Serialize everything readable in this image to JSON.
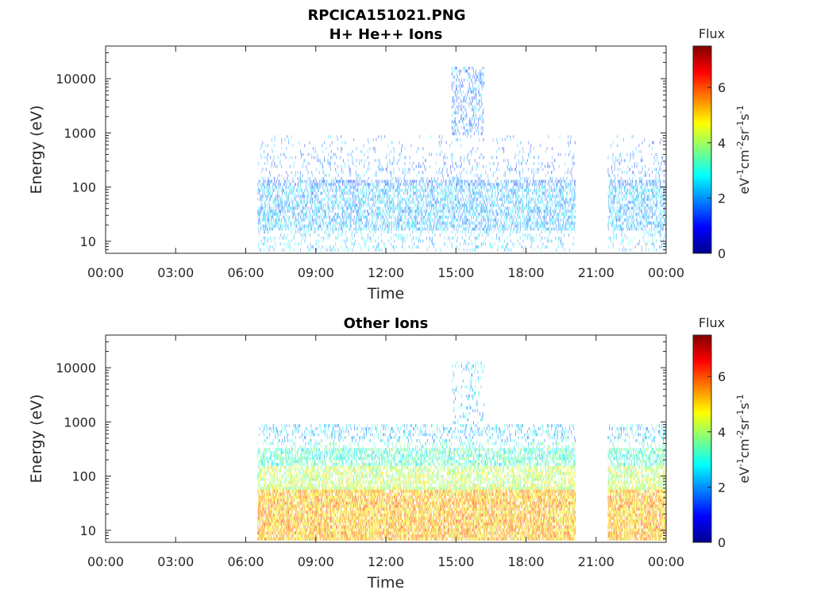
{
  "figure_title": "RPCICA151021.PNG",
  "chart_data": [
    {
      "type": "heatmap",
      "title": "H+ He++ Ions",
      "xlabel": "Time",
      "ylabel": "Energy (eV)",
      "x_ticks": [
        "00:00",
        "03:00",
        "06:00",
        "09:00",
        "12:00",
        "15:00",
        "18:00",
        "21:00",
        "00:00"
      ],
      "xlim_hours": [
        0,
        24
      ],
      "y_scale": "log",
      "y_ticks": [
        "10",
        "100",
        "1000",
        "10000"
      ],
      "ylim": [
        6,
        40000
      ],
      "colorbar": {
        "label": "Flux",
        "units": "eV-1cm-2sr-1s-1",
        "ticks": [
          "0",
          "2",
          "4",
          "6"
        ],
        "range": [
          0,
          7.5
        ],
        "colormap": "jet"
      },
      "data_intervals_hours": [
        [
          6.5,
          20.1
        ],
        [
          21.5,
          24
        ]
      ],
      "burst": {
        "start_hours": 14.8,
        "end_hours": 16.2,
        "max_energy_eV": 16000
      },
      "typical_flux_range": [
        1.5,
        3.5
      ]
    },
    {
      "type": "heatmap",
      "title": "Other Ions",
      "xlabel": "Time",
      "ylabel": "Energy (eV)",
      "x_ticks": [
        "00:00",
        "03:00",
        "06:00",
        "09:00",
        "12:00",
        "15:00",
        "18:00",
        "21:00",
        "00:00"
      ],
      "xlim_hours": [
        0,
        24
      ],
      "y_scale": "log",
      "y_ticks": [
        "10",
        "100",
        "1000",
        "10000"
      ],
      "ylim": [
        6,
        40000
      ],
      "colorbar": {
        "label": "Flux",
        "units": "eV-1cm-2sr-1s-1",
        "ticks": [
          "0",
          "2",
          "4",
          "6"
        ],
        "range": [
          0,
          7.5
        ],
        "colormap": "jet"
      },
      "data_intervals_hours": [
        [
          6.5,
          20.1
        ],
        [
          21.5,
          24
        ]
      ],
      "burst": {
        "start_hours": 14.8,
        "end_hours": 16.2,
        "max_energy_eV": 12000
      },
      "typical_flux_range": [
        2.5,
        6.5
      ]
    }
  ]
}
